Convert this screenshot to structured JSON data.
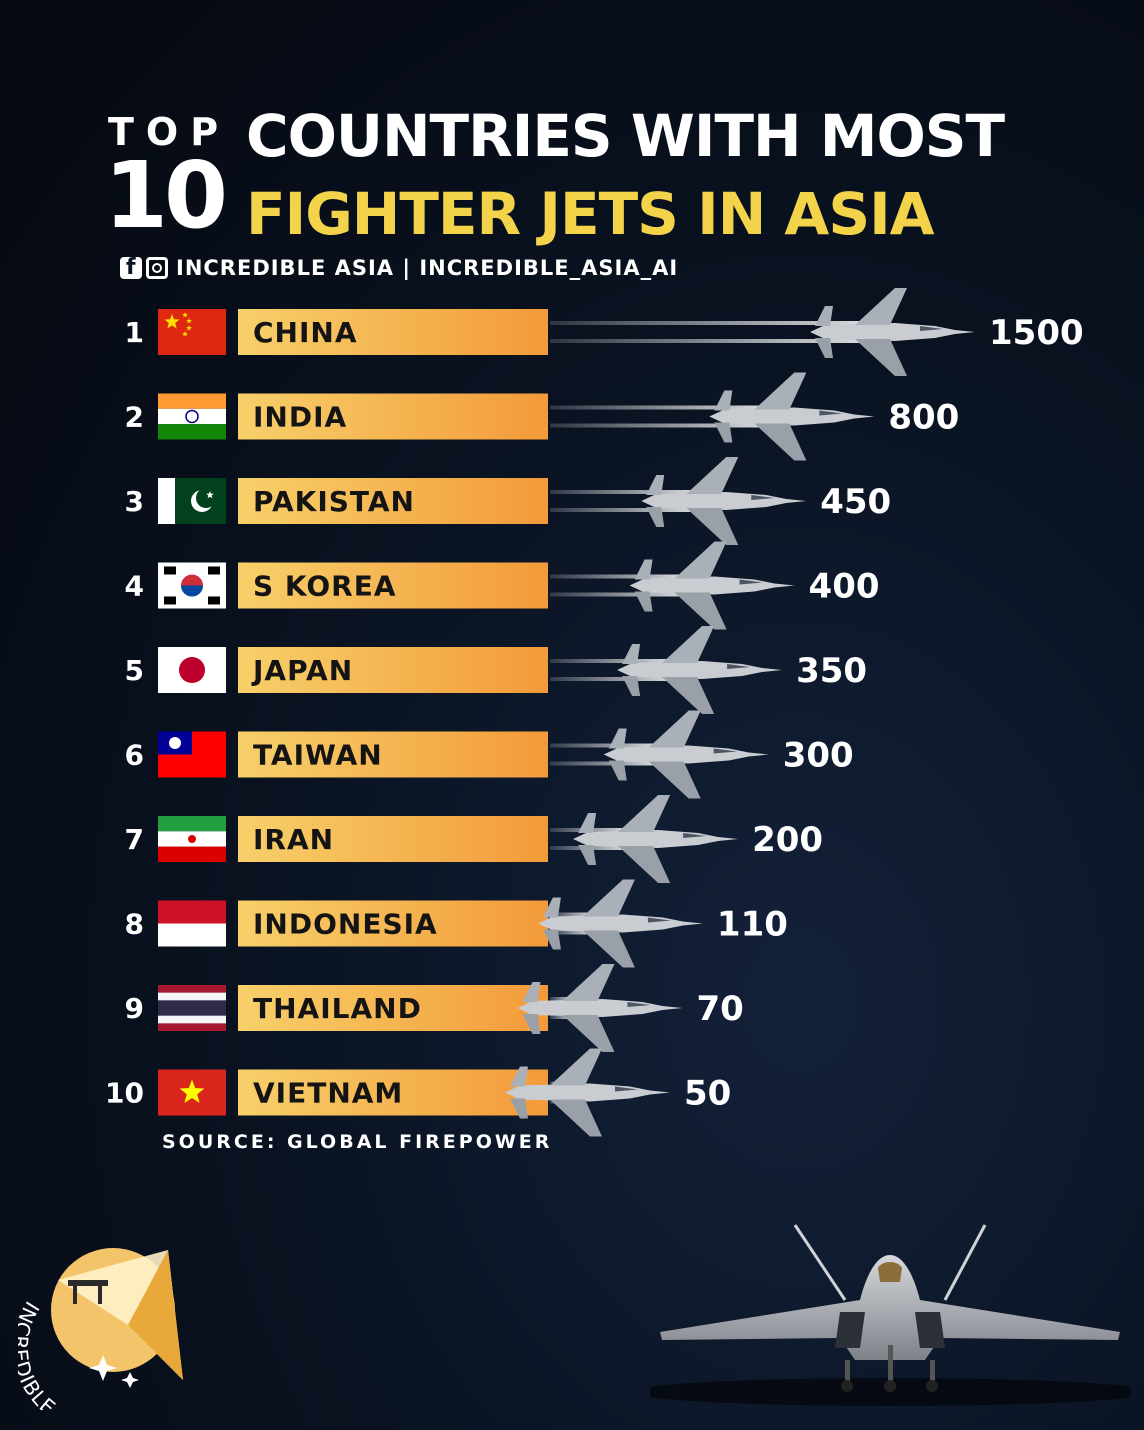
{
  "header": {
    "top_label": "TOP",
    "ten_label": "10",
    "title_line1": "COUNTRIES WITH MOST",
    "title_line2": "FIGHTER JETS IN ASIA",
    "handle": "INCREDIBLE ASIA | INCREDIBLE_ASIA_AI"
  },
  "chart_data": {
    "type": "bar",
    "title": "COUNTRIES WITH MOST FIGHTER JETS IN ASIA",
    "categories": [
      "CHINA",
      "INDIA",
      "PAKISTAN",
      "S KOREA",
      "JAPAN",
      "TAIWAN",
      "IRAN",
      "INDONESIA",
      "THAILAND",
      "VIETNAM"
    ],
    "ranks": [
      "1",
      "2",
      "3",
      "4",
      "5",
      "6",
      "7",
      "8",
      "9",
      "10"
    ],
    "values": [
      1500,
      800,
      450,
      400,
      350,
      300,
      200,
      110,
      70,
      50
    ],
    "orientation": "horizontal",
    "colors": {
      "label_bar_start": "#f7d06a",
      "label_bar_end": "#f39a3a",
      "title_accent": "#f3d34a"
    }
  },
  "source": "SOURCE: GLOBAL FIREPOWER",
  "logo": {
    "text": "INCREDIBLE ASIA"
  }
}
